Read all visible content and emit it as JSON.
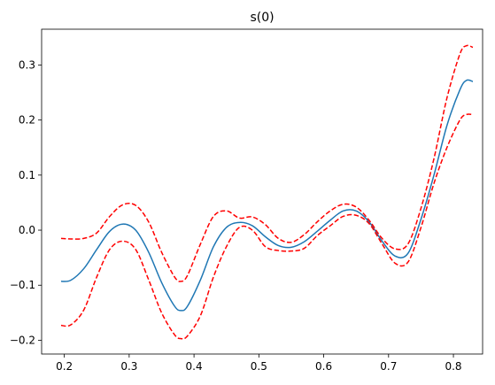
{
  "chart_data": {
    "type": "line",
    "title": "s(0)",
    "xlabel": "",
    "ylabel": "",
    "xlim": [
      0.165,
      0.845
    ],
    "ylim": [
      -0.225,
      0.365
    ],
    "xticks": [
      0.2,
      0.3,
      0.4,
      0.5,
      0.6,
      0.7,
      0.8
    ],
    "xtick_labels": [
      "0.2",
      "0.3",
      "0.4",
      "0.5",
      "0.6",
      "0.7",
      "0.8"
    ],
    "yticks": [
      -0.2,
      -0.1,
      0.0,
      0.1,
      0.2,
      0.3
    ],
    "ytick_labels": [
      "−0.2",
      "−0.1",
      "0.0",
      "0.1",
      "0.2",
      "0.3"
    ],
    "grid": false,
    "series": [
      {
        "role": "estimate",
        "color": "#1f77b4",
        "style": "solid",
        "x": [
          0.195,
          0.21,
          0.23,
          0.25,
          0.27,
          0.29,
          0.31,
          0.33,
          0.35,
          0.37,
          0.38,
          0.39,
          0.41,
          0.43,
          0.45,
          0.47,
          0.49,
          0.51,
          0.53,
          0.55,
          0.57,
          0.59,
          0.61,
          0.63,
          0.65,
          0.67,
          0.69,
          0.71,
          0.73,
          0.75,
          0.77,
          0.79,
          0.81,
          0.82,
          0.83
        ],
        "y": [
          -0.093,
          -0.091,
          -0.07,
          -0.035,
          -0.002,
          0.011,
          0.0,
          -0.04,
          -0.095,
          -0.138,
          -0.146,
          -0.138,
          -0.09,
          -0.03,
          0.005,
          0.014,
          0.008,
          -0.012,
          -0.028,
          -0.031,
          -0.021,
          -0.002,
          0.018,
          0.035,
          0.035,
          0.015,
          -0.02,
          -0.047,
          -0.042,
          0.02,
          0.1,
          0.19,
          0.255,
          0.272,
          0.27
        ]
      },
      {
        "role": "upper",
        "color": "#ff0000",
        "style": "dashed",
        "x": [
          0.195,
          0.21,
          0.23,
          0.25,
          0.27,
          0.29,
          0.31,
          0.33,
          0.35,
          0.37,
          0.38,
          0.39,
          0.41,
          0.43,
          0.45,
          0.47,
          0.49,
          0.51,
          0.53,
          0.55,
          0.57,
          0.59,
          0.61,
          0.63,
          0.65,
          0.67,
          0.69,
          0.71,
          0.73,
          0.75,
          0.77,
          0.79,
          0.81,
          0.82,
          0.83
        ],
        "y": [
          -0.015,
          -0.016,
          -0.015,
          -0.005,
          0.025,
          0.046,
          0.045,
          0.015,
          -0.04,
          -0.085,
          -0.093,
          -0.082,
          -0.025,
          0.025,
          0.035,
          0.022,
          0.024,
          0.01,
          -0.015,
          -0.022,
          -0.008,
          0.015,
          0.035,
          0.047,
          0.042,
          0.018,
          -0.015,
          -0.034,
          -0.025,
          0.04,
          0.13,
          0.24,
          0.32,
          0.335,
          0.332
        ]
      },
      {
        "role": "lower",
        "color": "#ff0000",
        "style": "dashed",
        "x": [
          0.195,
          0.21,
          0.23,
          0.25,
          0.27,
          0.29,
          0.31,
          0.33,
          0.35,
          0.37,
          0.38,
          0.39,
          0.41,
          0.43,
          0.45,
          0.47,
          0.49,
          0.51,
          0.53,
          0.55,
          0.57,
          0.59,
          0.61,
          0.63,
          0.65,
          0.67,
          0.69,
          0.71,
          0.73,
          0.75,
          0.77,
          0.79,
          0.81,
          0.82,
          0.83
        ],
        "y": [
          -0.173,
          -0.172,
          -0.145,
          -0.085,
          -0.035,
          -0.02,
          -0.035,
          -0.09,
          -0.15,
          -0.19,
          -0.197,
          -0.192,
          -0.155,
          -0.085,
          -0.03,
          0.005,
          0.0,
          -0.03,
          -0.037,
          -0.038,
          -0.033,
          -0.01,
          0.008,
          0.025,
          0.027,
          0.012,
          -0.025,
          -0.06,
          -0.058,
          0.005,
          0.085,
          0.15,
          0.2,
          0.21,
          0.21
        ]
      }
    ]
  }
}
